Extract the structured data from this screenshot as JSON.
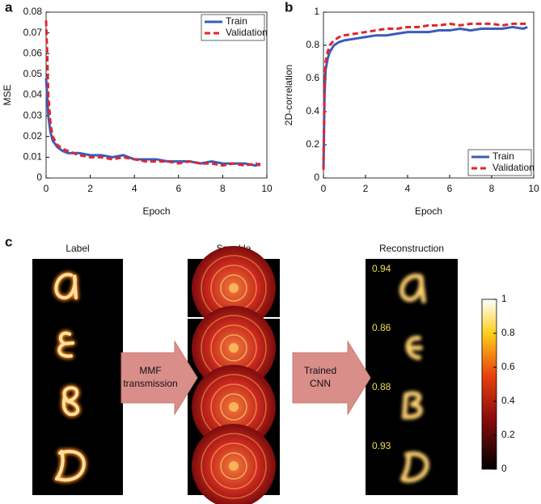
{
  "chart_data": [
    {
      "type": "line",
      "label": "a",
      "xlabel": "Epoch",
      "ylabel": "MSE",
      "x": [
        0,
        0.05,
        0.1,
        0.2,
        0.3,
        0.5,
        0.75,
        1,
        1.5,
        2,
        2.5,
        3,
        3.5,
        4,
        4.5,
        5,
        5.5,
        6,
        6.5,
        7,
        7.5,
        8,
        8.5,
        9,
        9.5,
        9.7
      ],
      "series": [
        {
          "name": "Train",
          "color": "#3a5cbc",
          "style": "solid",
          "values": [
            0.048,
            0.04,
            0.03,
            0.022,
            0.018,
            0.015,
            0.013,
            0.012,
            0.012,
            0.011,
            0.011,
            0.01,
            0.011,
            0.009,
            0.009,
            0.009,
            0.008,
            0.008,
            0.008,
            0.007,
            0.008,
            0.007,
            0.007,
            0.007,
            0.006,
            0.007
          ]
        },
        {
          "name": "Validation",
          "color": "#e0262b",
          "style": "dashed",
          "values": [
            0.076,
            0.06,
            0.04,
            0.026,
            0.02,
            0.016,
            0.014,
            0.013,
            0.011,
            0.01,
            0.01,
            0.009,
            0.01,
            0.009,
            0.008,
            0.008,
            0.008,
            0.007,
            0.008,
            0.007,
            0.007,
            0.006,
            0.007,
            0.006,
            0.007,
            0.006
          ]
        }
      ],
      "xlim": [
        0,
        10
      ],
      "xticks": [
        0,
        2,
        4,
        6,
        8,
        10
      ],
      "ylim": [
        0,
        0.08
      ],
      "yticks": [
        0,
        0.01,
        0.02,
        0.03,
        0.04,
        0.05,
        0.06,
        0.07,
        0.08
      ],
      "legend": "upper right"
    },
    {
      "type": "line",
      "label": "b",
      "xlabel": "Epoch",
      "ylabel": "2D-correlation",
      "x": [
        0,
        0.05,
        0.1,
        0.2,
        0.3,
        0.5,
        0.75,
        1,
        1.5,
        2,
        2.5,
        3,
        3.5,
        4,
        4.5,
        5,
        5.5,
        6,
        6.5,
        7,
        7.5,
        8,
        8.5,
        9,
        9.5,
        9.7
      ],
      "series": [
        {
          "name": "Train",
          "color": "#3a5cbc",
          "style": "solid",
          "values": [
            0.05,
            0.5,
            0.65,
            0.72,
            0.76,
            0.8,
            0.82,
            0.83,
            0.84,
            0.85,
            0.86,
            0.86,
            0.87,
            0.88,
            0.88,
            0.88,
            0.89,
            0.89,
            0.9,
            0.89,
            0.9,
            0.9,
            0.9,
            0.91,
            0.9,
            0.91
          ]
        },
        {
          "name": "Validation",
          "color": "#e0262b",
          "style": "dashed",
          "values": [
            0.05,
            0.55,
            0.7,
            0.76,
            0.8,
            0.83,
            0.85,
            0.86,
            0.87,
            0.88,
            0.89,
            0.9,
            0.9,
            0.91,
            0.91,
            0.92,
            0.92,
            0.93,
            0.92,
            0.93,
            0.93,
            0.93,
            0.92,
            0.93,
            0.93,
            0.93
          ]
        }
      ],
      "xlim": [
        0,
        10
      ],
      "xticks": [
        0,
        2,
        4,
        6,
        8,
        10
      ],
      "ylim": [
        0,
        1
      ],
      "yticks": [
        0,
        0.2,
        0.4,
        0.6,
        0.8,
        1
      ],
      "legend": "lower right"
    }
  ],
  "figure": {
    "label": "c",
    "columns": [
      "Label",
      "Speckle",
      "Reconstruction"
    ],
    "arrows": [
      [
        "MMF",
        "transmission"
      ],
      [
        "Trained",
        "CNN"
      ]
    ],
    "scores": [
      0.94,
      0.86,
      0.88,
      0.93
    ],
    "colorbar": {
      "lim": [
        0,
        1
      ],
      "ticks": [
        0,
        0.2,
        0.4,
        0.6,
        0.8,
        1
      ]
    }
  }
}
